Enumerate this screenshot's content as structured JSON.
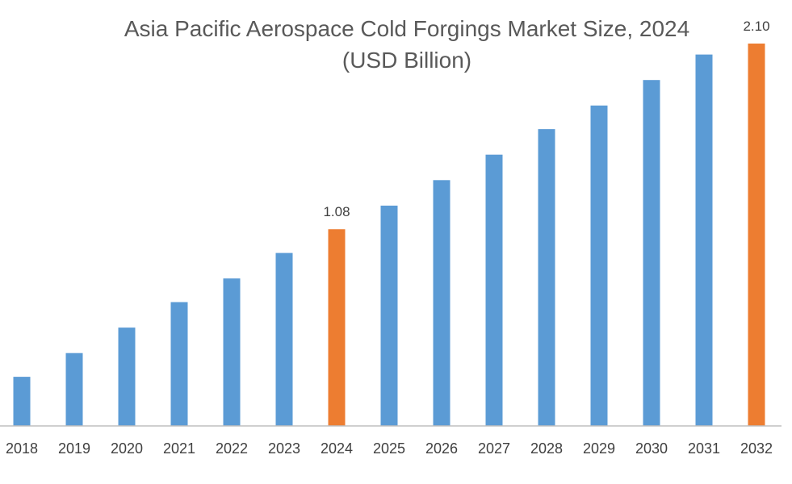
{
  "chart_data": {
    "type": "bar",
    "title": "Asia Pacific Aerospace Cold Forgings Market Size, 2024",
    "subtitle": "(USD Billion)",
    "xlabel": "",
    "ylabel": "",
    "ylim": [
      0,
      2.2
    ],
    "grid": false,
    "legend": "none",
    "categories": [
      "2018",
      "2019",
      "2020",
      "2021",
      "2022",
      "2023",
      "2024",
      "2025",
      "2026",
      "2027",
      "2028",
      "2029",
      "2030",
      "2031",
      "2032"
    ],
    "values": [
      0.27,
      0.4,
      0.54,
      0.68,
      0.81,
      0.95,
      1.08,
      1.21,
      1.35,
      1.49,
      1.63,
      1.76,
      1.9,
      2.04,
      2.1
    ],
    "highlighted": [
      "2024",
      "2032"
    ],
    "data_labels": {
      "2024": "1.08",
      "2032": "2.10"
    },
    "colors": {
      "bar": "#5b9bd5",
      "highlight": "#ed7d31",
      "axis": "#bfbfbf",
      "title": "#595959",
      "tick": "#404040"
    }
  }
}
